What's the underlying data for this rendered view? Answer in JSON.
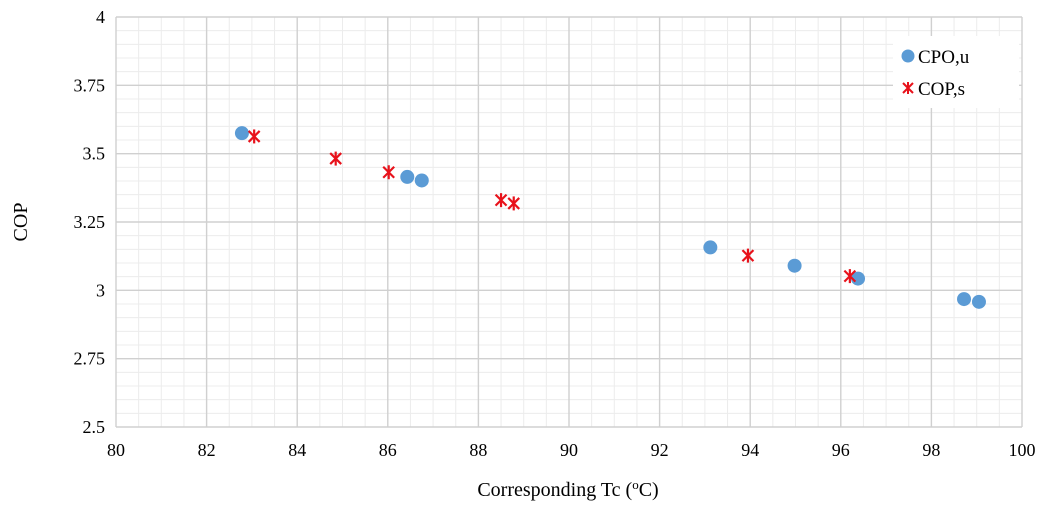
{
  "chart_data": {
    "type": "scatter",
    "title": "",
    "xlabel": "Corresponding Tc (",
    "xlabel_sup": "o",
    "xlabel_suffix": "C)",
    "ylabel": "COP",
    "xlim": [
      80,
      100
    ],
    "ylim": [
      2.5,
      4
    ],
    "x_ticks": [
      "80",
      "82",
      "84",
      "86",
      "88",
      "90",
      "92",
      "94",
      "96",
      "98",
      "100"
    ],
    "y_ticks": [
      "2.5",
      "2.75",
      "3",
      "3.25",
      "3.5",
      "3.75",
      "4"
    ],
    "grid": true,
    "minor_grid": true,
    "legend_position": "top-right",
    "series": [
      {
        "name": "CPO,u",
        "marker": "circle",
        "color": "#5b9bd5",
        "points": [
          [
            82.78,
            3.575
          ],
          [
            86.43,
            3.415
          ],
          [
            86.75,
            3.402
          ],
          [
            93.12,
            3.157
          ],
          [
            94.98,
            3.09
          ],
          [
            96.38,
            3.043
          ],
          [
            98.72,
            2.968
          ],
          [
            99.05,
            2.958
          ]
        ]
      },
      {
        "name": "COP,s",
        "marker": "x-star",
        "color": "#e8121b",
        "points": [
          [
            83.05,
            3.563
          ],
          [
            84.85,
            3.482
          ],
          [
            86.02,
            3.432
          ],
          [
            88.5,
            3.33
          ],
          [
            88.78,
            3.318
          ],
          [
            93.95,
            3.127
          ],
          [
            96.2,
            3.052
          ]
        ]
      }
    ]
  }
}
